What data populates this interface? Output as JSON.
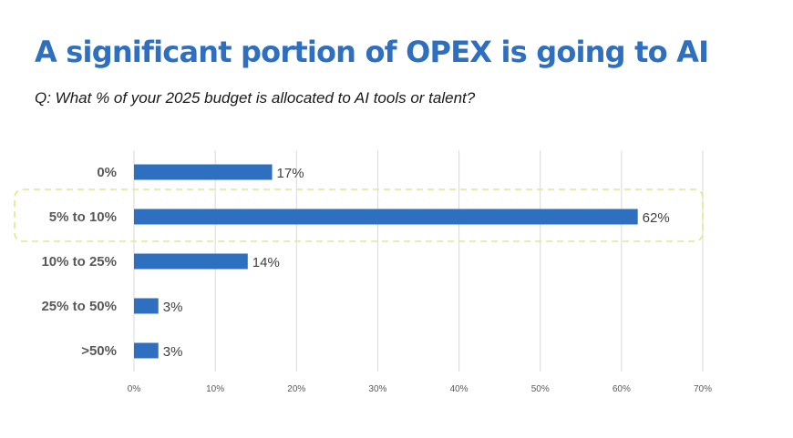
{
  "header": {
    "title": "A significant portion of OPEX is going to AI",
    "subtitle": "Q: What % of your 2025 budget is allocated to AI tools or talent?"
  },
  "colors": {
    "title": "#2e6fc0",
    "bar": "#2e6fc0",
    "grid": "#d9d9d9",
    "highlight": "#dde98a"
  },
  "chart_data": {
    "type": "bar",
    "orientation": "horizontal",
    "categories": [
      "0%",
      "5% to 10%",
      "10% to 25%",
      "25% to 50%",
      ">50%"
    ],
    "values": [
      17,
      62,
      14,
      3,
      3
    ],
    "value_labels": [
      "17%",
      "62%",
      "14%",
      "3%",
      "3%"
    ],
    "xticks": [
      "0%",
      "10%",
      "20%",
      "30%",
      "40%",
      "50%",
      "60%",
      "70%"
    ],
    "xlim": [
      0,
      70
    ],
    "grid": true,
    "highlighted_category": "5% to 10%",
    "title": "",
    "xlabel": "",
    "ylabel": ""
  }
}
